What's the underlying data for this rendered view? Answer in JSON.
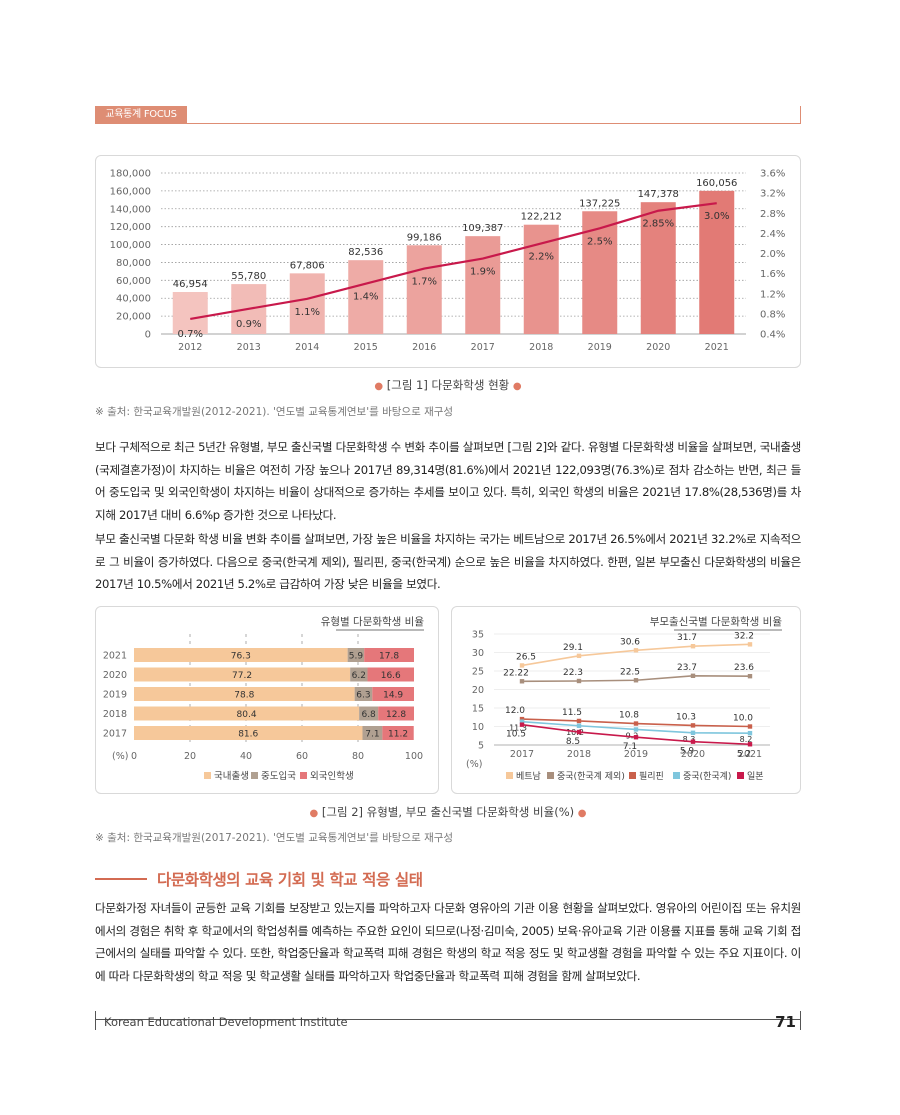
{
  "header": {
    "tab_label": "교육통계 FOCUS"
  },
  "figure1": {
    "caption": "[그림 1] 다문화학생 현황",
    "source": "※ 출처: 한국교육개발원(2012-2021). '연도별 교육통계연보'를 바탕으로 재구성"
  },
  "figure2": {
    "caption": "[그림 2] 유형별, 부모 출신국별 다문화학생 비율(%)",
    "source": "※ 출처: 한국교육개발원(2017-2021). '연도별 교육통계연보'를 바탕으로 재구성"
  },
  "paragraphs": {
    "p1": "보다 구체적으로 최근 5년간 유형별, 부모 출신국별 다문화학생 수 변화 추이를 살펴보면 [그림 2]와 같다. 유형별 다문화학생 비율을 살펴보면, 국내출생(국제결혼가정)이 차지하는 비율은 여전히 가장 높으나 2017년 89,314명(81.6%)에서 2021년 122,093명(76.3%)로 점차 감소하는 반면, 최근 들어 중도입국 및 외국인학생이 차지하는 비율이 상대적으로 증가하는 추세를 보이고 있다. 특히, 외국인 학생의 비율은 2021년 17.8%(28,536명)를 차지해 2017년 대비 6.6%p 증가한 것으로 나타났다.",
    "p2": "부모 출신국별 다문화 학생 비율 변화 추이를 살펴보면, 가장 높은 비율을 차지하는 국가는 베트남으로 2017년 26.5%에서 2021년 32.2%로 지속적으로 그 비율이 증가하였다. 다음으로 중국(한국계 제외), 필리핀, 중국(한국계) 순으로 높은 비율을 차지하였다. 한편, 일본 부모출신 다문화학생의 비율은 2017년 10.5%에서 2021년 5.2%로 급감하여 가장 낮은 비율을 보였다.",
    "p3": "다문화가정 자녀들이 균등한 교육 기회를 보장받고 있는지를 파악하고자 다문화 영유아의 기관 이용 현황을 살펴보았다. 영유아의 어린이집 또는 유치원에서의 경험은 취학 후 학교에서의 학업성취를 예측하는 주요한 요인이 되므로(나정·김미숙, 2005) 보육·유아교육 기관 이용률 지표를 통해 교육 기회 접근에서의 실태를 파악할 수 있다. 또한, 학업중단율과 학교폭력 피해 경험은 학생의 학교 적응 정도 및 학교생활 경험을 파악할 수 있는 주요 지표이다. 이에 따라 다문화학생의 학교 적응 및 학교생활 실태를 파악하고자 학업중단율과 학교폭력 피해 경험을 함께 살펴보았다."
  },
  "section": {
    "heading": "다문화학생의 교육 기회 및 학교 적응 실태"
  },
  "footer": {
    "institute": "Korean Educational Development Institute",
    "page_number": "71"
  },
  "colors": {
    "accent": "#de8d74",
    "line_red": "#c8194b",
    "domestic": "#f6c89a",
    "midentry": "#b0a091",
    "foreign": "#e5777a",
    "vietnam": "#f6c89a",
    "china_nonkr": "#a88f7d",
    "philippines": "#c9604b",
    "china_kr": "#7fc6dd",
    "japan": "#c8194b"
  },
  "chart_data": [
    {
      "type": "bar",
      "title": "",
      "categories": [
        "2012",
        "2013",
        "2014",
        "2015",
        "2016",
        "2017",
        "2018",
        "2019",
        "2020",
        "2021"
      ],
      "series": [
        {
          "values": [
            46954,
            55780,
            67806,
            82536,
            99186,
            109387,
            122212,
            137225,
            147378,
            160056
          ],
          "labels": [
            "46,954",
            "55,780",
            "67,806",
            "82,536",
            "99,186",
            "109,387",
            "122,212",
            "137,225",
            "147,378",
            "160,056"
          ]
        },
        {
          "type": "line",
          "axis": "right",
          "values": [
            0.7,
            0.9,
            1.1,
            1.4,
            1.7,
            1.9,
            2.2,
            2.5,
            2.85,
            3.0
          ],
          "labels": [
            "0.7%",
            "0.9%",
            "1.1%",
            "1.4%",
            "1.7%",
            "1.9%",
            "2.2%",
            "2.5%",
            "2.85%",
            "3.0%"
          ]
        }
      ],
      "ylim": [
        0,
        180000
      ],
      "yticks": [
        "180,000",
        "160,000",
        "140,000",
        "120,000",
        "100,000",
        "80,000",
        "60,000",
        "40,000",
        "20,000",
        "0"
      ],
      "y2lim": [
        0.4,
        3.6
      ],
      "y2ticks": [
        "3.6%",
        "3.2%",
        "2.8%",
        "2.4%",
        "2.0%",
        "1.6%",
        "1.2%",
        "0.8%",
        "0.4%"
      ],
      "grid": true
    },
    {
      "type": "bar",
      "orientation": "horizontal-stacked",
      "title": "유형별 다문화학생 비율",
      "categories": [
        "2021",
        "2020",
        "2019",
        "2018",
        "2017"
      ],
      "series": [
        {
          "name": "국내출생",
          "values": [
            76.3,
            77.2,
            78.8,
            80.4,
            81.6
          ]
        },
        {
          "name": "중도입국",
          "values": [
            5.9,
            6.2,
            6.3,
            6.8,
            7.1
          ]
        },
        {
          "name": "외국인학생",
          "values": [
            17.8,
            16.6,
            14.9,
            12.8,
            11.2
          ]
        }
      ],
      "xlim": [
        0,
        100
      ],
      "xticks": [
        "0",
        "20",
        "40",
        "60",
        "80",
        "100"
      ],
      "unit_label": "(%)",
      "legend": "bottom"
    },
    {
      "type": "line",
      "title": "부모출신국별 다문화학생 비율",
      "x": [
        "2017",
        "2018",
        "2019",
        "2020",
        "2021"
      ],
      "series": [
        {
          "name": "베트남",
          "values": [
            26.5,
            29.1,
            30.6,
            31.7,
            32.2
          ],
          "labels": [
            "26.5",
            "29.1",
            "30.6",
            "31.7",
            "32.2"
          ]
        },
        {
          "name": "중국(한국계 제외)",
          "values": [
            22.22,
            22.3,
            22.5,
            23.7,
            23.6
          ],
          "labels": [
            "22.22",
            "22.3",
            "22.5",
            "23.7",
            "23.6"
          ]
        },
        {
          "name": "필리핀",
          "values": [
            12.0,
            11.5,
            10.8,
            10.3,
            10.0
          ],
          "labels": [
            "12.0",
            "11.5",
            "10.8",
            "10.3",
            "10.0"
          ]
        },
        {
          "name": "중국(한국계)",
          "values": [
            11.3,
            10.2,
            9.2,
            8.3,
            8.2
          ],
          "labels": [
            "11.3",
            "10.2",
            "9.2",
            "8.3",
            "8.2"
          ]
        },
        {
          "name": "일본",
          "values": [
            10.5,
            8.5,
            7.1,
            5.9,
            5.2
          ],
          "labels": [
            "10.5",
            "8.5",
            "7.1",
            "5.9",
            "5.2"
          ]
        }
      ],
      "ylim": [
        5,
        35
      ],
      "yticks": [
        "35",
        "30",
        "25",
        "20",
        "15",
        "10",
        "5"
      ],
      "unit_label": "(%)",
      "legend": "bottom"
    }
  ]
}
